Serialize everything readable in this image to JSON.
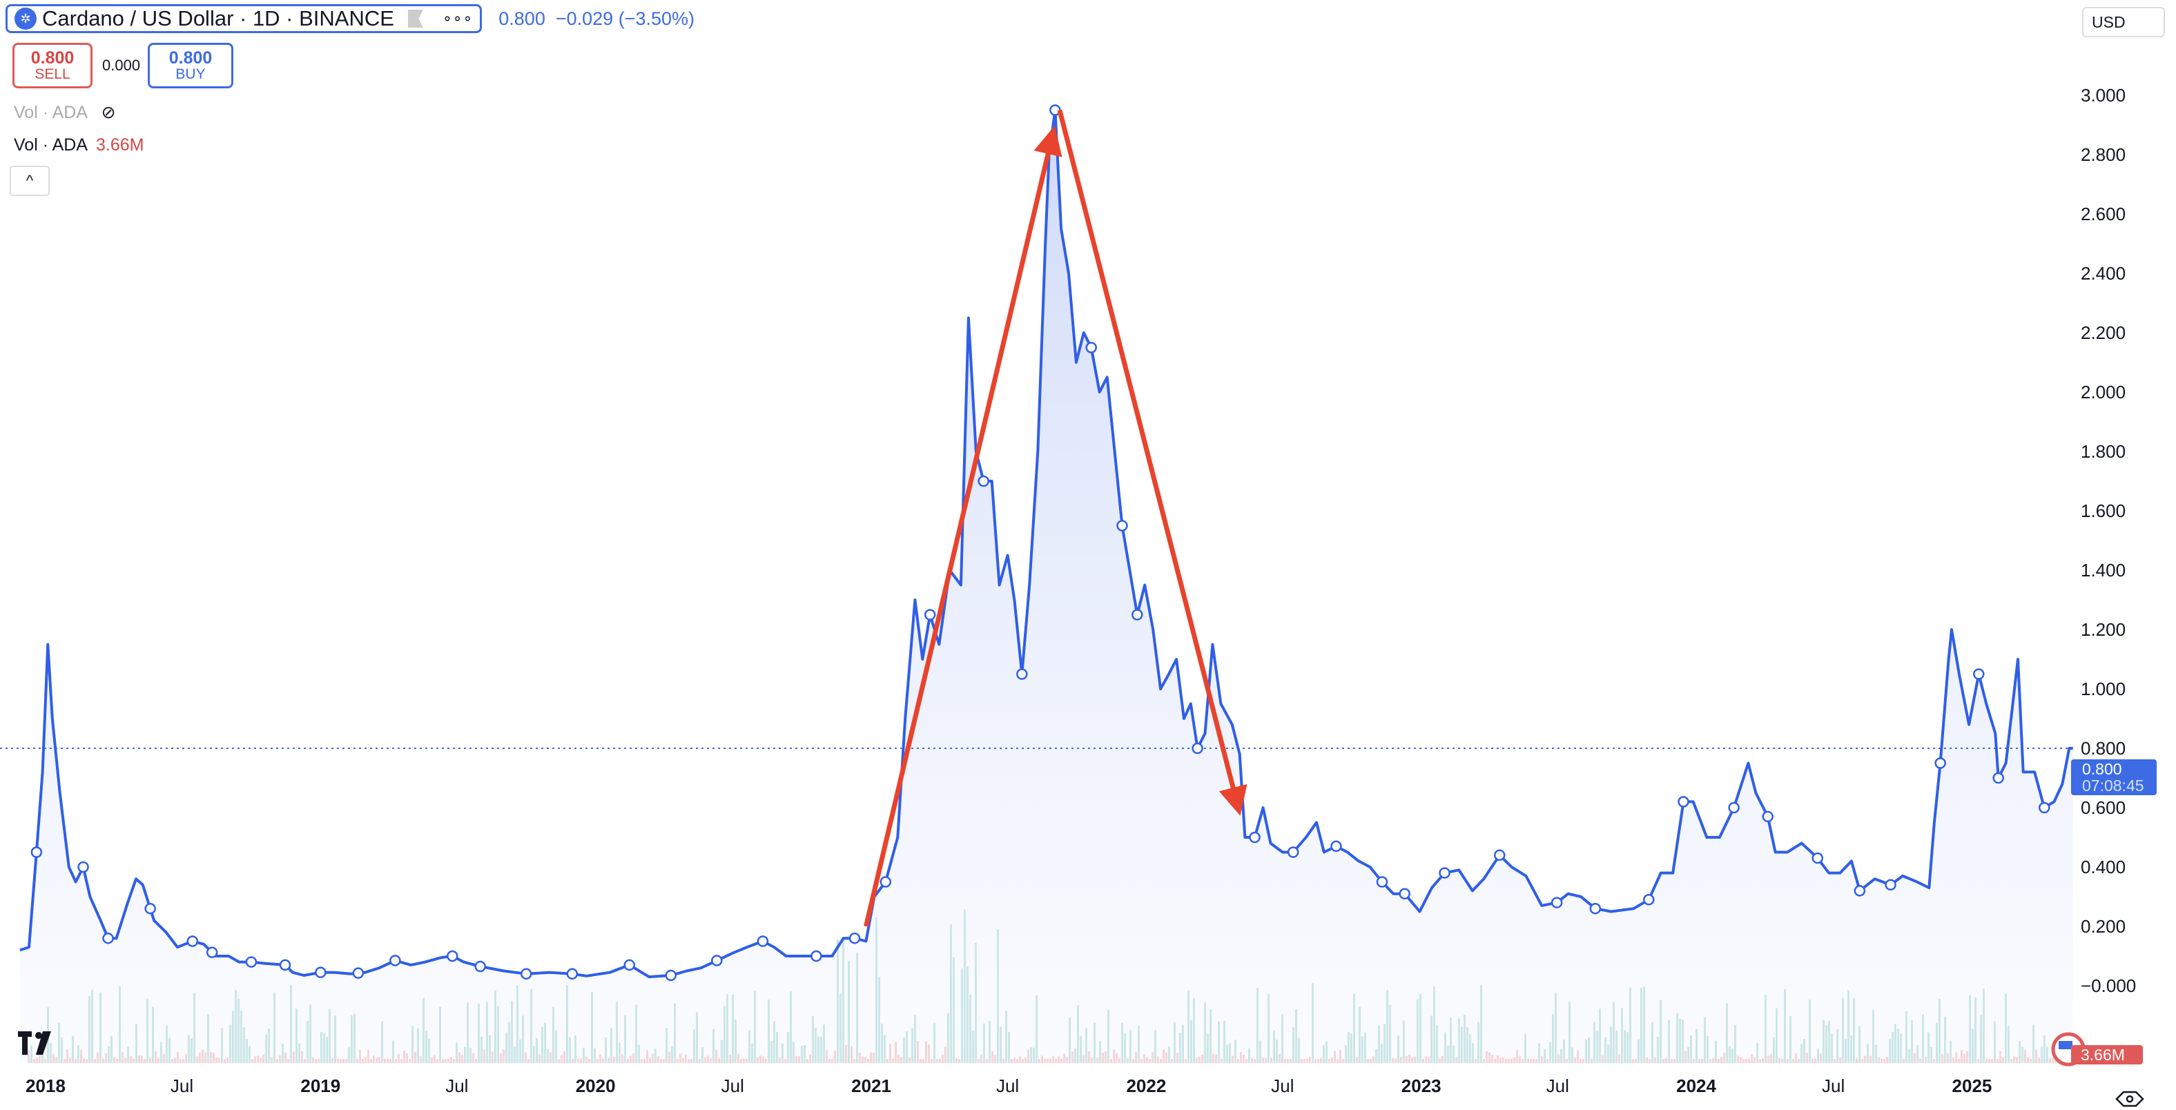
{
  "header": {
    "symbol": "Cardano / US Dollar · 1D · BINANCE",
    "logo_icon": "cardano-logo-icon",
    "more_label": "∘∘∘",
    "last": "0.800",
    "change": "−0.029",
    "change_pct": "(−3.50%)"
  },
  "trade": {
    "sell_price": "0.800",
    "sell_label": "SELL",
    "spread": "0.000",
    "buy_price": "0.800",
    "buy_label": "BUY"
  },
  "indicators": {
    "vol_hidden_label": "Vol · ADA",
    "vol_label": "Vol · ADA",
    "vol_value": "3.66M",
    "collapse": "^"
  },
  "currency": "USD",
  "price_tag": {
    "price": "0.800",
    "countdown": "07:08:45"
  },
  "volume_tag": "3.66M",
  "colors": {
    "line": "#2f5ee8",
    "fill": "#dfe6fb",
    "arrow": "#e8432d",
    "price_tag": "#3d6be5",
    "volume_tag": "#e05a5a"
  },
  "chart_data": {
    "type": "area",
    "ylim": [
      0,
      3.0
    ],
    "y_ticks": [
      "3.000",
      "2.800",
      "2.600",
      "2.400",
      "2.200",
      "2.000",
      "1.800",
      "1.600",
      "1.400",
      "1.200",
      "1.000",
      "0.800",
      "0.600",
      "0.400",
      "0.200",
      "−0.000"
    ],
    "y_tick_values": [
      3.0,
      2.8,
      2.6,
      2.4,
      2.2,
      2.0,
      1.8,
      1.6,
      1.4,
      1.2,
      1.0,
      0.8,
      0.6,
      0.4,
      0.2,
      0
    ],
    "x_ticks": [
      {
        "label": "2018",
        "date": "2018-01-01",
        "year": true
      },
      {
        "label": "Jul",
        "date": "2018-07-01"
      },
      {
        "label": "2019",
        "date": "2019-01-01",
        "year": true
      },
      {
        "label": "Jul",
        "date": "2019-07-01"
      },
      {
        "label": "2020",
        "date": "2020-01-01",
        "year": true
      },
      {
        "label": "Jul",
        "date": "2020-07-01"
      },
      {
        "label": "2021",
        "date": "2021-01-01",
        "year": true
      },
      {
        "label": "Jul",
        "date": "2021-07-01"
      },
      {
        "label": "2022",
        "date": "2022-01-01",
        "year": true
      },
      {
        "label": "Jul",
        "date": "2022-07-01"
      },
      {
        "label": "2023",
        "date": "2023-01-01",
        "year": true
      },
      {
        "label": "Jul",
        "date": "2023-07-01"
      },
      {
        "label": "2024",
        "date": "2024-01-01",
        "year": true
      },
      {
        "label": "Jul",
        "date": "2024-07-01"
      },
      {
        "label": "2025",
        "date": "2025-01-01",
        "year": true
      }
    ],
    "grid": false,
    "last_price": 0.8,
    "series": [
      {
        "points": [
          [
            "2017-11-28",
            0.12
          ],
          [
            "2017-12-10",
            0.13
          ],
          [
            "2017-12-20",
            0.45
          ],
          [
            "2017-12-28",
            0.72
          ],
          [
            "2018-01-04",
            1.15
          ],
          [
            "2018-01-10",
            0.9
          ],
          [
            "2018-01-20",
            0.65
          ],
          [
            "2018-02-01",
            0.4
          ],
          [
            "2018-02-10",
            0.35
          ],
          [
            "2018-02-20",
            0.4
          ],
          [
            "2018-03-01",
            0.3
          ],
          [
            "2018-03-15",
            0.22
          ],
          [
            "2018-03-25",
            0.16
          ],
          [
            "2018-04-05",
            0.16
          ],
          [
            "2018-04-20",
            0.28
          ],
          [
            "2018-05-01",
            0.36
          ],
          [
            "2018-05-10",
            0.34
          ],
          [
            "2018-05-25",
            0.22
          ],
          [
            "2018-06-10",
            0.18
          ],
          [
            "2018-06-25",
            0.13
          ],
          [
            "2018-07-15",
            0.15
          ],
          [
            "2018-07-30",
            0.14
          ],
          [
            "2018-08-15",
            0.1
          ],
          [
            "2018-09-01",
            0.1
          ],
          [
            "2018-09-15",
            0.08
          ],
          [
            "2018-10-01",
            0.08
          ],
          [
            "2018-10-20",
            0.075
          ],
          [
            "2018-11-15",
            0.07
          ],
          [
            "2018-11-25",
            0.045
          ],
          [
            "2018-12-10",
            0.035
          ],
          [
            "2019-01-01",
            0.045
          ],
          [
            "2019-01-20",
            0.045
          ],
          [
            "2019-02-10",
            0.04
          ],
          [
            "2019-03-01",
            0.045
          ],
          [
            "2019-03-20",
            0.06
          ],
          [
            "2019-04-10",
            0.085
          ],
          [
            "2019-05-01",
            0.07
          ],
          [
            "2019-05-20",
            0.08
          ],
          [
            "2019-06-10",
            0.095
          ],
          [
            "2019-06-25",
            0.1
          ],
          [
            "2019-07-10",
            0.08
          ],
          [
            "2019-08-01",
            0.065
          ],
          [
            "2019-09-01",
            0.05
          ],
          [
            "2019-10-01",
            0.04
          ],
          [
            "2019-11-01",
            0.045
          ],
          [
            "2019-12-01",
            0.04
          ],
          [
            "2019-12-20",
            0.033
          ],
          [
            "2020-01-20",
            0.045
          ],
          [
            "2020-02-15",
            0.07
          ],
          [
            "2020-03-12",
            0.03
          ],
          [
            "2020-04-10",
            0.035
          ],
          [
            "2020-05-01",
            0.05
          ],
          [
            "2020-05-20",
            0.06
          ],
          [
            "2020-06-10",
            0.085
          ],
          [
            "2020-07-01",
            0.11
          ],
          [
            "2020-07-20",
            0.13
          ],
          [
            "2020-08-10",
            0.15
          ],
          [
            "2020-08-25",
            0.13
          ],
          [
            "2020-09-10",
            0.1
          ],
          [
            "2020-10-01",
            0.1
          ],
          [
            "2020-10-20",
            0.1
          ],
          [
            "2020-11-10",
            0.1
          ],
          [
            "2020-11-25",
            0.16
          ],
          [
            "2020-12-10",
            0.16
          ],
          [
            "2020-12-25",
            0.15
          ],
          [
            "2021-01-05",
            0.3
          ],
          [
            "2021-01-20",
            0.35
          ],
          [
            "2021-02-05",
            0.5
          ],
          [
            "2021-02-15",
            0.9
          ],
          [
            "2021-02-28",
            1.3
          ],
          [
            "2021-03-10",
            1.1
          ],
          [
            "2021-03-20",
            1.25
          ],
          [
            "2021-04-01",
            1.15
          ],
          [
            "2021-04-15",
            1.4
          ],
          [
            "2021-04-30",
            1.35
          ],
          [
            "2021-05-10",
            2.25
          ],
          [
            "2021-05-20",
            1.8
          ],
          [
            "2021-05-30",
            1.7
          ],
          [
            "2021-06-10",
            1.7
          ],
          [
            "2021-06-20",
            1.35
          ],
          [
            "2021-07-01",
            1.45
          ],
          [
            "2021-07-10",
            1.3
          ],
          [
            "2021-07-20",
            1.05
          ],
          [
            "2021-07-30",
            1.35
          ],
          [
            "2021-08-10",
            1.8
          ],
          [
            "2021-08-20",
            2.5
          ],
          [
            "2021-08-25",
            2.8
          ],
          [
            "2021-09-02",
            2.95
          ],
          [
            "2021-09-10",
            2.55
          ],
          [
            "2021-09-20",
            2.4
          ],
          [
            "2021-09-30",
            2.1
          ],
          [
            "2021-10-10",
            2.2
          ],
          [
            "2021-10-20",
            2.15
          ],
          [
            "2021-10-31",
            2.0
          ],
          [
            "2021-11-10",
            2.05
          ],
          [
            "2021-11-20",
            1.8
          ],
          [
            "2021-11-30",
            1.55
          ],
          [
            "2021-12-10",
            1.4
          ],
          [
            "2021-12-20",
            1.25
          ],
          [
            "2021-12-30",
            1.35
          ],
          [
            "2022-01-10",
            1.2
          ],
          [
            "2022-01-20",
            1.0
          ],
          [
            "2022-01-31",
            1.05
          ],
          [
            "2022-02-10",
            1.1
          ],
          [
            "2022-02-20",
            0.9
          ],
          [
            "2022-03-01",
            0.95
          ],
          [
            "2022-03-10",
            0.8
          ],
          [
            "2022-03-20",
            0.85
          ],
          [
            "2022-03-30",
            1.15
          ],
          [
            "2022-04-10",
            0.95
          ],
          [
            "2022-04-25",
            0.88
          ],
          [
            "2022-05-05",
            0.78
          ],
          [
            "2022-05-12",
            0.5
          ],
          [
            "2022-05-25",
            0.5
          ],
          [
            "2022-06-05",
            0.6
          ],
          [
            "2022-06-15",
            0.48
          ],
          [
            "2022-07-01",
            0.45
          ],
          [
            "2022-07-15",
            0.45
          ],
          [
            "2022-08-01",
            0.5
          ],
          [
            "2022-08-15",
            0.55
          ],
          [
            "2022-08-25",
            0.45
          ],
          [
            "2022-09-10",
            0.47
          ],
          [
            "2022-09-25",
            0.45
          ],
          [
            "2022-10-10",
            0.42
          ],
          [
            "2022-10-25",
            0.4
          ],
          [
            "2022-11-10",
            0.35
          ],
          [
            "2022-11-25",
            0.31
          ],
          [
            "2022-12-10",
            0.31
          ],
          [
            "2022-12-30",
            0.25
          ],
          [
            "2023-01-15",
            0.33
          ],
          [
            "2023-02-01",
            0.38
          ],
          [
            "2023-02-20",
            0.39
          ],
          [
            "2023-03-10",
            0.32
          ],
          [
            "2023-03-25",
            0.36
          ],
          [
            "2023-04-15",
            0.44
          ],
          [
            "2023-05-01",
            0.4
          ],
          [
            "2023-05-20",
            0.37
          ],
          [
            "2023-06-10",
            0.27
          ],
          [
            "2023-06-30",
            0.28
          ],
          [
            "2023-07-15",
            0.31
          ],
          [
            "2023-08-01",
            0.3
          ],
          [
            "2023-08-20",
            0.26
          ],
          [
            "2023-09-10",
            0.25
          ],
          [
            "2023-10-10",
            0.26
          ],
          [
            "2023-10-30",
            0.29
          ],
          [
            "2023-11-15",
            0.38
          ],
          [
            "2023-12-01",
            0.38
          ],
          [
            "2023-12-15",
            0.62
          ],
          [
            "2023-12-28",
            0.62
          ],
          [
            "2024-01-15",
            0.5
          ],
          [
            "2024-02-01",
            0.5
          ],
          [
            "2024-02-20",
            0.6
          ],
          [
            "2024-03-10",
            0.75
          ],
          [
            "2024-03-20",
            0.65
          ],
          [
            "2024-04-05",
            0.57
          ],
          [
            "2024-04-15",
            0.45
          ],
          [
            "2024-05-01",
            0.45
          ],
          [
            "2024-05-20",
            0.48
          ],
          [
            "2024-06-10",
            0.43
          ],
          [
            "2024-06-25",
            0.38
          ],
          [
            "2024-07-10",
            0.38
          ],
          [
            "2024-07-25",
            0.42
          ],
          [
            "2024-08-05",
            0.32
          ],
          [
            "2024-08-25",
            0.36
          ],
          [
            "2024-09-15",
            0.34
          ],
          [
            "2024-10-01",
            0.37
          ],
          [
            "2024-10-20",
            0.35
          ],
          [
            "2024-11-05",
            0.33
          ],
          [
            "2024-11-12",
            0.55
          ],
          [
            "2024-11-20",
            0.75
          ],
          [
            "2024-12-01",
            1.1
          ],
          [
            "2024-12-05",
            1.2
          ],
          [
            "2024-12-15",
            1.05
          ],
          [
            "2024-12-28",
            0.88
          ],
          [
            "2025-01-10",
            1.05
          ],
          [
            "2025-01-20",
            0.95
          ],
          [
            "2025-02-01",
            0.85
          ],
          [
            "2025-02-05",
            0.7
          ],
          [
            "2025-02-15",
            0.75
          ],
          [
            "2025-03-03",
            1.1
          ],
          [
            "2025-03-10",
            0.72
          ],
          [
            "2025-03-25",
            0.72
          ],
          [
            "2025-04-07",
            0.6
          ],
          [
            "2025-04-20",
            0.62
          ],
          [
            "2025-05-01",
            0.68
          ],
          [
            "2025-05-10",
            0.8
          ],
          [
            "2025-05-15",
            0.8
          ]
        ]
      }
    ],
    "markers": [
      "2017-12-20",
      "2018-02-20",
      "2018-03-25",
      "2018-05-20",
      "2018-07-15",
      "2018-08-10",
      "2018-10-01",
      "2018-11-15",
      "2019-01-01",
      "2019-02-20",
      "2019-04-10",
      "2019-06-25",
      "2019-08-01",
      "2019-10-01",
      "2019-12-01",
      "2020-02-15",
      "2020-04-10",
      "2020-06-10",
      "2020-08-10",
      "2020-10-20",
      "2020-12-10",
      "2021-01-20",
      "2021-03-20",
      "2021-05-30",
      "2021-07-20",
      "2021-09-02",
      "2021-10-20",
      "2021-11-30",
      "2021-12-20",
      "2022-03-10",
      "2022-05-25",
      "2022-07-15",
      "2022-09-10",
      "2022-11-10",
      "2022-12-10",
      "2023-02-01",
      "2023-04-15",
      "2023-06-30",
      "2023-08-20",
      "2023-10-30",
      "2023-12-15",
      "2024-02-20",
      "2024-04-05",
      "2024-06-10",
      "2024-08-05",
      "2024-09-15",
      "2024-11-20",
      "2025-01-10",
      "2025-02-05",
      "2025-04-07"
    ],
    "annotations": [
      {
        "type": "arrow",
        "from": [
          "2020-12-25",
          0.2
        ],
        "to": [
          "2021-08-28",
          2.85
        ]
      },
      {
        "type": "arrow",
        "from": [
          "2021-09-08",
          2.95
        ],
        "to": [
          "2022-05-01",
          0.62
        ]
      }
    ]
  }
}
